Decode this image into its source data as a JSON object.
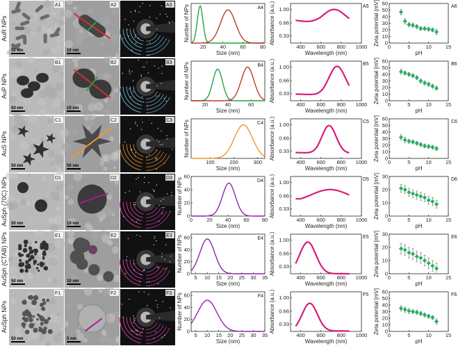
{
  "rows": [
    {
      "label": "AuR NPs",
      "panels": [
        "A1",
        "A2",
        "A3",
        "A4",
        "A5",
        "A6"
      ],
      "scalebars": [
        "50 nm",
        "10 nm"
      ],
      "ring_color": "#6fb6d9",
      "tem_style": "rods",
      "size_dist": {
        "xlabel": "Size (nm)",
        "ylabel": "Number of NPs",
        "xticks": [
          20,
          40,
          60,
          80
        ],
        "xlim": [
          8,
          82
        ],
        "curves": [
          {
            "color": "#22a244",
            "mu": 17,
            "sigma": 2.8,
            "peak": 0.94
          },
          {
            "color": "#c0392b",
            "mu": 45,
            "sigma": 7.5,
            "peak": 0.84
          }
        ],
        "yticks": [],
        "ylim": [
          0,
          1
        ]
      },
      "abs": {
        "peak_nm": 730,
        "ylim": [
          0.15,
          1.15
        ],
        "baseline": 0.62,
        "amp": 0.38,
        "width": 110,
        "dip_nm": 600
      },
      "zeta": {
        "ylabel": "Zeta potential [mV]",
        "xlabel": "pH",
        "ylim": [
          0,
          60
        ],
        "yticks": [
          0,
          10,
          20,
          30,
          40,
          50,
          60
        ],
        "x": [
          3,
          4,
          5,
          6,
          7,
          8,
          9,
          10,
          11,
          12
        ],
        "y": [
          47,
          33,
          28,
          27,
          25,
          22,
          22,
          21,
          20,
          17
        ],
        "err": [
          4,
          4,
          3,
          3,
          3,
          3,
          3,
          3,
          3,
          4
        ]
      }
    },
    {
      "label": "AuP NPs",
      "panels": [
        "B1",
        "B2",
        "B3",
        "B4",
        "B5",
        "B6"
      ],
      "scalebars": [
        "50 nm",
        "10 nm"
      ],
      "ring_color": "#6fb6d9",
      "tem_style": "peanut",
      "size_dist": {
        "xlabel": "Size (nm)",
        "ylabel": "Number of NPs",
        "xticks": [
          20,
          40,
          60
        ],
        "xlim": [
          8,
          72
        ],
        "curves": [
          {
            "color": "#22a244",
            "mu": 31,
            "sigma": 4.2,
            "peak": 0.8
          },
          {
            "color": "#c0392b",
            "mu": 57,
            "sigma": 5.5,
            "peak": 0.85
          }
        ],
        "yticks": [],
        "ylim": [
          0,
          1
        ]
      },
      "abs": {
        "peak_nm": 760,
        "ylim": [
          0.15,
          1.15
        ],
        "baseline": 0.3,
        "amp": 0.72,
        "width": 80,
        "dip_nm": 560
      },
      "zeta": {
        "ylabel": "Zeta potential [mV]",
        "xlabel": "pH",
        "ylim": [
          0,
          60
        ],
        "yticks": [
          0,
          10,
          20,
          30,
          40,
          50,
          60
        ],
        "x": [
          3,
          4,
          5,
          6,
          7,
          8,
          9,
          10,
          11,
          12
        ],
        "y": [
          44,
          42,
          40,
          38,
          35,
          30,
          27,
          25,
          22,
          19
        ],
        "err": [
          4,
          3,
          3,
          3,
          3,
          3,
          3,
          3,
          3,
          3
        ]
      }
    },
    {
      "label": "AuS NPs",
      "panels": [
        "C1",
        "C2",
        "C3",
        "C4",
        "C5",
        "C6"
      ],
      "scalebars": [
        "50 nm",
        "50 nm"
      ],
      "ring_color": "#e08a2a",
      "tem_style": "stars",
      "size_dist": {
        "xlabel": "Size (nm)",
        "ylabel": "Number of NPs",
        "xticks": [
          100,
          200,
          300
        ],
        "xlim": [
          20,
          330
        ],
        "curves": [
          {
            "color": "#f0962a",
            "mu": 240,
            "sigma": 38,
            "peak": 0.85
          }
        ],
        "yticks": [],
        "ylim": [
          0,
          1
        ]
      },
      "abs": {
        "peak_nm": 680,
        "ylim": [
          0.15,
          1.15
        ],
        "baseline": 0.28,
        "amp": 0.7,
        "width": 70,
        "dip_nm": 560
      },
      "zeta": {
        "ylabel": "Zeta potential [mV]",
        "xlabel": "pH",
        "ylim": [
          0,
          60
        ],
        "yticks": [
          0,
          10,
          20,
          30,
          40,
          50,
          60
        ],
        "x": [
          3,
          4,
          5,
          6,
          7,
          8,
          9,
          10,
          11,
          12
        ],
        "y": [
          32,
          28,
          26,
          25,
          23,
          21,
          19,
          18,
          17,
          15
        ],
        "err": [
          4,
          4,
          3,
          3,
          3,
          3,
          3,
          3,
          3,
          3
        ]
      }
    },
    {
      "label": "AuSph (70C) NPs",
      "panels": [
        "D1",
        "D2",
        "D3",
        "D4",
        "D5",
        "D6"
      ],
      "scalebars": [
        "50 nm",
        "10 nm"
      ],
      "ring_color": "#d33aa6",
      "tem_style": "sparse",
      "size_dist": {
        "xlabel": "Size (nm)",
        "ylabel": "Number of NPs",
        "xticks": [
          0,
          20,
          40,
          60,
          80
        ],
        "xlim": [
          0,
          80
        ],
        "curves": [
          {
            "color": "#8e24aa",
            "mu": 41,
            "sigma": 7,
            "peak": 50
          }
        ],
        "yticks": [
          0,
          20,
          40,
          60
        ],
        "ylim": [
          0,
          60
        ]
      },
      "abs": {
        "peak_nm": 690,
        "ylim": [
          0.15,
          1.15
        ],
        "baseline": 0.5,
        "amp": 0.32,
        "width": 180,
        "dip_nm": 400
      },
      "zeta": {
        "ylabel": "Zeta potential [mV]",
        "xlabel": "pH",
        "ylim": [
          0,
          30
        ],
        "yticks": [
          0,
          10,
          20,
          30
        ],
        "x": [
          3,
          4,
          5,
          6,
          7,
          8,
          9,
          10,
          11,
          12
        ],
        "y": [
          21,
          20,
          18,
          17,
          16,
          15,
          14,
          12,
          11,
          9
        ],
        "err": [
          3,
          3,
          3,
          3,
          3,
          3,
          3,
          3,
          3,
          3
        ]
      }
    },
    {
      "label": "AuSph (CTAB) NPs",
      "panels": [
        "E1",
        "E2",
        "E3",
        "E4",
        "E5",
        "E6"
      ],
      "scalebars": [
        "50 nm",
        "10 nm"
      ],
      "ring_color": "#d33aa6",
      "tem_style": "many",
      "size_dist": {
        "xlabel": "Size (nm)",
        "ylabel": "Number of NPs",
        "xticks": [
          5,
          10,
          15,
          20,
          25,
          30,
          35
        ],
        "xlim": [
          3,
          35
        ],
        "curves": [
          {
            "color": "#8e24aa",
            "mu": 10,
            "sigma": 3.2,
            "peak": 58
          }
        ],
        "yticks": [
          0,
          20,
          40,
          60
        ],
        "ylim": [
          0,
          66
        ]
      },
      "abs": {
        "peak_nm": 470,
        "ylim": [
          0.15,
          1.15
        ],
        "baseline": 0.15,
        "amp": 0.8,
        "width": 80,
        "dip_nm": 300
      },
      "zeta": {
        "ylabel": "Zeta potential [mV]",
        "xlabel": "pH",
        "ylim": [
          0,
          30
        ],
        "yticks": [
          0,
          10,
          20,
          30
        ],
        "x": [
          3,
          4,
          5,
          6,
          7,
          8,
          9,
          10,
          11,
          12
        ],
        "y": [
          19,
          18,
          16,
          15,
          13,
          12,
          10,
          8,
          6,
          4
        ],
        "err": [
          4,
          4,
          4,
          4,
          4,
          4,
          4,
          4,
          4,
          4
        ]
      }
    },
    {
      "label": "AuSph NPs",
      "panels": [
        "F1",
        "F2",
        "F3",
        "F4",
        "F5",
        "F6"
      ],
      "scalebars": [
        "50 nm",
        "5 nm"
      ],
      "ring_color": "#d33aa6",
      "tem_style": "clusters",
      "size_dist": {
        "xlabel": "Size (nm)",
        "ylabel": "Number of NPs",
        "xticks": [
          5,
          10,
          15,
          20,
          25,
          30,
          35
        ],
        "xlim": [
          3,
          35
        ],
        "curves": [
          {
            "color": "#8e24aa",
            "mu": 10,
            "sigma": 4.2,
            "peak": 52
          }
        ],
        "yticks": [
          0,
          20,
          40,
          60
        ],
        "ylim": [
          0,
          66
        ]
      },
      "abs": {
        "peak_nm": 490,
        "ylim": [
          0.15,
          1.15
        ],
        "baseline": 0.16,
        "amp": 0.7,
        "width": 75,
        "dip_nm": 300
      },
      "zeta": {
        "ylabel": "Zeta potential [mV]",
        "xlabel": "pH",
        "ylim": [
          0,
          60
        ],
        "yticks": [
          0,
          10,
          20,
          30,
          40,
          50,
          60
        ],
        "x": [
          3,
          4,
          5,
          6,
          7,
          8,
          9,
          10,
          11,
          12
        ],
        "y": [
          35,
          33,
          31,
          30,
          29,
          27,
          25,
          23,
          21,
          15
        ],
        "err": [
          4,
          4,
          4,
          3,
          3,
          3,
          3,
          3,
          3,
          4
        ]
      }
    }
  ],
  "abs_common": {
    "xlabel": "Wavelength (nm)",
    "ylabel": "Absorbance (a.u.)",
    "xlim": [
      300,
      1000
    ],
    "xticks": [
      400,
      600,
      800,
      1000
    ],
    "yticks": [
      0.33,
      0.66,
      1.0
    ],
    "ytick_labels": [
      "0.33",
      "0.66",
      "1.00"
    ],
    "color": "#d81b7a"
  },
  "zeta_common": {
    "xlim": [
      0,
      15
    ],
    "xticks": [
      0,
      5,
      10,
      15
    ],
    "color": "#27ae60"
  }
}
